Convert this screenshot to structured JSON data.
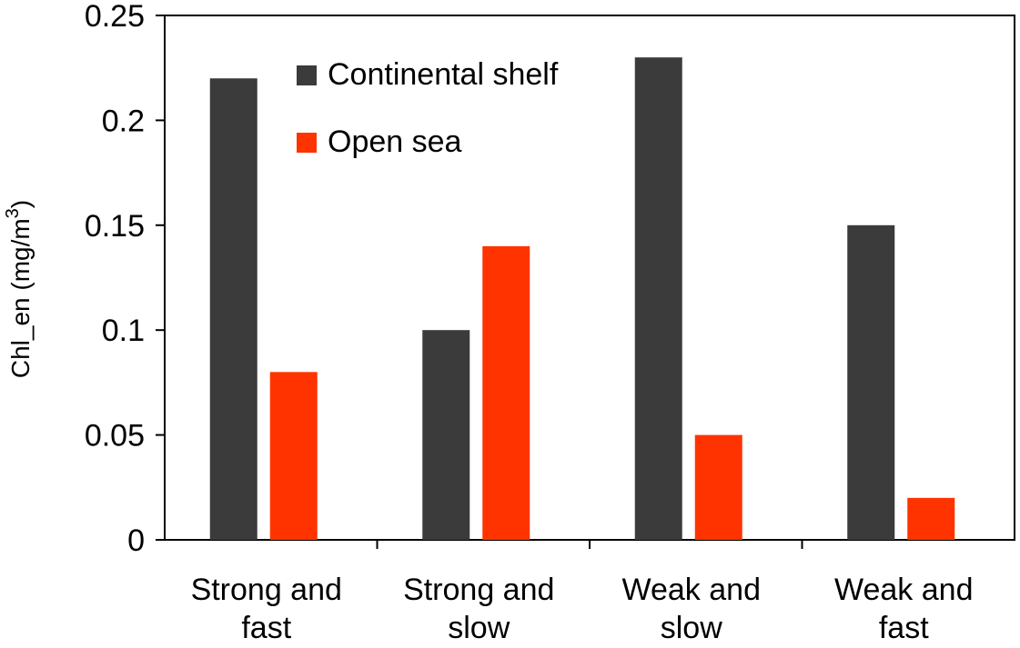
{
  "chart_data": {
    "type": "bar",
    "categories": [
      [
        "Strong and",
        "fast"
      ],
      [
        "Strong and",
        "slow"
      ],
      [
        "Weak and",
        "slow"
      ],
      [
        "Weak and",
        "fast"
      ]
    ],
    "series": [
      {
        "name": "Continental shelf",
        "values": [
          0.22,
          0.1,
          0.23,
          0.15
        ],
        "color": "#3b3b3b"
      },
      {
        "name": "Open sea",
        "values": [
          0.08,
          0.14,
          0.05,
          0.02
        ],
        "color": "#ff3300"
      }
    ],
    "ylabel": "Chl_en (mg/m",
    "ylabel_superscript": "3",
    "ylabel_close": ")",
    "ylim": [
      0,
      0.25
    ],
    "yticks": [
      0,
      0.05,
      0.1,
      0.15,
      0.2,
      0.25
    ],
    "ytick_labels": [
      "0",
      "0.05",
      "0.1",
      "0.15",
      "0.2",
      "0.25"
    ],
    "legend_position": "top-center",
    "grid": false
  }
}
